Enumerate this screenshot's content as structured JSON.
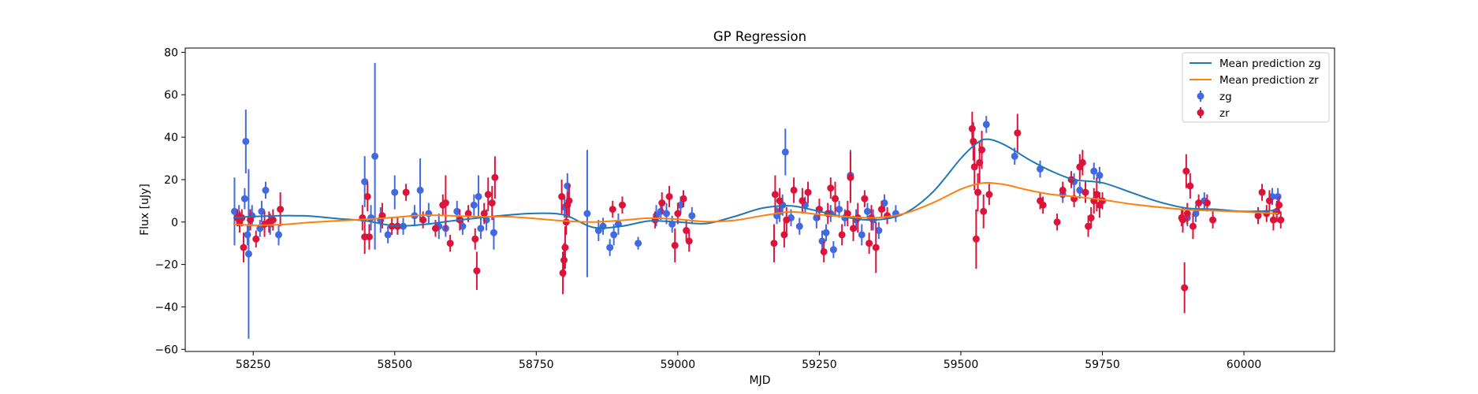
{
  "chart_data": {
    "type": "scatter",
    "title": "GP Regression",
    "xlabel": "MJD",
    "ylabel": "Flux [uJy]",
    "xlim": [
      58130,
      60160
    ],
    "ylim": [
      -61,
      82
    ],
    "xticks": [
      58250,
      58500,
      58750,
      59000,
      59250,
      59500,
      59750,
      60000
    ],
    "yticks": [
      -60,
      -40,
      -20,
      0,
      20,
      40,
      60,
      80
    ],
    "grid": false,
    "legend_position": "top-right",
    "series": [
      {
        "name": "Mean prediction zg",
        "kind": "line",
        "color": "#1f77b4",
        "x": [
          58215,
          58250,
          58300,
          58350,
          58400,
          58450,
          58500,
          58550,
          58600,
          58650,
          58700,
          58750,
          58800,
          58850,
          58900,
          58950,
          59000,
          59050,
          59100,
          59150,
          59200,
          59250,
          59300,
          59350,
          59400,
          59450,
          59500,
          59530,
          59550,
          59580,
          59620,
          59660,
          59700,
          59750,
          59800,
          59850,
          59900,
          59950,
          60000,
          60060
        ],
        "y": [
          2.0,
          2.6,
          3.0,
          2.8,
          1.6,
          0.5,
          -1.8,
          -1.2,
          0.5,
          2.0,
          3.3,
          4.1,
          3.3,
          -2.5,
          -2.0,
          0.5,
          0.0,
          -0.7,
          2.6,
          6.6,
          7.6,
          5.0,
          2.1,
          1.0,
          4.0,
          14.0,
          30.0,
          37.5,
          39.0,
          36.0,
          29.5,
          24.0,
          20.0,
          18.5,
          14.0,
          9.5,
          6.5,
          6.0,
          5.0,
          5.5
        ]
      },
      {
        "name": "Mean prediction zr",
        "kind": "line",
        "color": "#ff7f0e",
        "x": [
          58215,
          58250,
          58300,
          58350,
          58400,
          58450,
          58500,
          58550,
          58600,
          58650,
          58700,
          58750,
          58800,
          58850,
          58900,
          58950,
          59000,
          59050,
          59100,
          59150,
          59200,
          59250,
          59300,
          59350,
          59400,
          59450,
          59500,
          59530,
          59550,
          59580,
          59620,
          59660,
          59700,
          59750,
          59800,
          59850,
          59900,
          59950,
          60000,
          60060
        ],
        "y": [
          -1.0,
          -1.5,
          -1.2,
          -0.2,
          0.6,
          1.3,
          2.2,
          3.2,
          3.0,
          2.5,
          2.5,
          1.6,
          0.5,
          0.0,
          0.8,
          1.8,
          1.3,
          0.2,
          0.8,
          3.0,
          4.8,
          3.5,
          2.5,
          2.0,
          4.0,
          9.0,
          15.5,
          18.0,
          18.5,
          17.5,
          15.0,
          13.0,
          12.0,
          10.5,
          8.5,
          7.0,
          5.8,
          5.3,
          4.8,
          4.0
        ]
      },
      {
        "name": "zg",
        "kind": "errorbar",
        "color": "#4169e1",
        "points": [
          [
            58217,
            5,
            16
          ],
          [
            58225,
            3,
            5
          ],
          [
            58235,
            11,
            5
          ],
          [
            58237,
            38,
            15
          ],
          [
            58240,
            -6,
            5
          ],
          [
            58242,
            -15,
            40
          ],
          [
            58248,
            3,
            5
          ],
          [
            58262,
            -3,
            4
          ],
          [
            58265,
            5,
            5
          ],
          [
            58272,
            15,
            4
          ],
          [
            58280,
            -1,
            5
          ],
          [
            58295,
            -6,
            5
          ],
          [
            58447,
            19,
            12
          ],
          [
            58458,
            2,
            6
          ],
          [
            58465,
            31,
            44
          ],
          [
            58475,
            1,
            6
          ],
          [
            58488,
            -6,
            4
          ],
          [
            58500,
            14,
            8
          ],
          [
            58515,
            -2,
            4
          ],
          [
            58535,
            3,
            5
          ],
          [
            58545,
            15,
            15
          ],
          [
            58560,
            4,
            5
          ],
          [
            58578,
            -2,
            6
          ],
          [
            58590,
            -3,
            4
          ],
          [
            58610,
            5,
            5
          ],
          [
            58620,
            -2,
            4
          ],
          [
            58640,
            8,
            5
          ],
          [
            58648,
            12,
            10
          ],
          [
            58652,
            -3,
            5
          ],
          [
            58662,
            1,
            5
          ],
          [
            58675,
            -5,
            8
          ],
          [
            58800,
            7,
            5
          ],
          [
            58805,
            17,
            6
          ],
          [
            58840,
            4,
            30
          ],
          [
            58860,
            -4,
            5
          ],
          [
            58868,
            -2,
            4
          ],
          [
            58880,
            -12,
            4
          ],
          [
            58887,
            -6,
            5
          ],
          [
            58895,
            -1,
            5
          ],
          [
            58930,
            -10,
            3
          ],
          [
            58962,
            3,
            5
          ],
          [
            58970,
            5,
            4
          ],
          [
            58980,
            4,
            5
          ],
          [
            58990,
            -1,
            4
          ],
          [
            59005,
            8,
            4
          ],
          [
            59025,
            3,
            4
          ],
          [
            59175,
            3,
            4
          ],
          [
            59180,
            5,
            5
          ],
          [
            59185,
            8,
            5
          ],
          [
            59190,
            33,
            11
          ],
          [
            59200,
            2,
            4
          ],
          [
            59215,
            -2,
            4
          ],
          [
            59225,
            8,
            4
          ],
          [
            59245,
            2,
            5
          ],
          [
            59255,
            -9,
            5
          ],
          [
            59262,
            -5,
            4
          ],
          [
            59270,
            4,
            4
          ],
          [
            59275,
            -13,
            4
          ],
          [
            59285,
            6,
            4
          ],
          [
            59295,
            2,
            4
          ],
          [
            59305,
            22,
            12
          ],
          [
            59315,
            1,
            5
          ],
          [
            59325,
            -6,
            5
          ],
          [
            59335,
            5,
            4
          ],
          [
            59345,
            1,
            5
          ],
          [
            59355,
            -4,
            4
          ],
          [
            59365,
            9,
            4
          ],
          [
            59385,
            4,
            4
          ],
          [
            59545,
            46,
            4
          ],
          [
            59595,
            31,
            4
          ],
          [
            59640,
            25,
            4
          ],
          [
            59680,
            13,
            4
          ],
          [
            59700,
            19,
            4
          ],
          [
            59710,
            15,
            4
          ],
          [
            59735,
            24,
            4
          ],
          [
            59745,
            22,
            4
          ],
          [
            59900,
            2,
            4
          ],
          [
            59915,
            4,
            4
          ],
          [
            59930,
            10,
            4
          ],
          [
            60050,
            12,
            4
          ],
          [
            60060,
            12,
            4
          ]
        ]
      },
      {
        "name": "zr",
        "kind": "errorbar",
        "color": "#dc143c",
        "points": [
          [
            58222,
            2,
            4
          ],
          [
            58226,
            0,
            5
          ],
          [
            58230,
            2,
            4
          ],
          [
            58233,
            -12,
            7
          ],
          [
            58245,
            1,
            5
          ],
          [
            58255,
            -8,
            4
          ],
          [
            58270,
            -1,
            6
          ],
          [
            58278,
            0,
            5
          ],
          [
            58285,
            1,
            5
          ],
          [
            58298,
            6,
            8
          ],
          [
            58443,
            2,
            6
          ],
          [
            58447,
            -7,
            8
          ],
          [
            58452,
            12,
            7
          ],
          [
            58455,
            -7,
            6
          ],
          [
            58478,
            3,
            6
          ],
          [
            58495,
            -2,
            4
          ],
          [
            58505,
            -2,
            4
          ],
          [
            58520,
            14,
            4
          ],
          [
            58550,
            1,
            4
          ],
          [
            58572,
            -3,
            4
          ],
          [
            58585,
            8,
            5
          ],
          [
            58590,
            9,
            13
          ],
          [
            58598,
            -10,
            4
          ],
          [
            58615,
            1,
            5
          ],
          [
            58630,
            4,
            4
          ],
          [
            58642,
            -8,
            5
          ],
          [
            58645,
            -23,
            9
          ],
          [
            58658,
            4,
            5
          ],
          [
            58665,
            13,
            8
          ],
          [
            58672,
            9,
            8
          ],
          [
            58677,
            21,
            10
          ],
          [
            58795,
            12,
            8
          ],
          [
            58797,
            -24,
            10
          ],
          [
            58799,
            -18,
            8
          ],
          [
            58801,
            -12,
            10
          ],
          [
            58803,
            0,
            6
          ],
          [
            58805,
            8,
            6
          ],
          [
            58808,
            10,
            8
          ],
          [
            58885,
            6,
            4
          ],
          [
            58902,
            8,
            4
          ],
          [
            58960,
            1,
            4
          ],
          [
            58972,
            9,
            5
          ],
          [
            58985,
            12,
            5
          ],
          [
            58995,
            -11,
            8
          ],
          [
            59000,
            4,
            5
          ],
          [
            59010,
            11,
            4
          ],
          [
            59015,
            -4,
            5
          ],
          [
            59020,
            -9,
            5
          ],
          [
            59170,
            -10,
            9
          ],
          [
            59172,
            13,
            9
          ],
          [
            59180,
            10,
            6
          ],
          [
            59188,
            -6,
            6
          ],
          [
            59192,
            1,
            6
          ],
          [
            59205,
            15,
            6
          ],
          [
            59220,
            10,
            6
          ],
          [
            59230,
            14,
            5
          ],
          [
            59250,
            6,
            5
          ],
          [
            59258,
            -14,
            5
          ],
          [
            59265,
            4,
            5
          ],
          [
            59270,
            16,
            5
          ],
          [
            59278,
            11,
            8
          ],
          [
            59290,
            -6,
            5
          ],
          [
            59300,
            4,
            6
          ],
          [
            59305,
            21,
            12
          ],
          [
            59310,
            -3,
            6
          ],
          [
            59318,
            2,
            7
          ],
          [
            59330,
            11,
            4
          ],
          [
            59338,
            -10,
            5
          ],
          [
            59342,
            2,
            6
          ],
          [
            59350,
            -12,
            12
          ],
          [
            59360,
            6,
            4
          ],
          [
            59370,
            3,
            4
          ],
          [
            59520,
            44,
            8
          ],
          [
            59522,
            38,
            9
          ],
          [
            59524,
            26,
            11
          ],
          [
            59527,
            -8,
            14
          ],
          [
            59530,
            14,
            9
          ],
          [
            59533,
            28,
            10
          ],
          [
            59537,
            34,
            9
          ],
          [
            59540,
            5,
            8
          ],
          [
            59550,
            13,
            5
          ],
          [
            59600,
            42,
            9
          ],
          [
            59640,
            10,
            4
          ],
          [
            59645,
            8,
            4
          ],
          [
            59670,
            0,
            4
          ],
          [
            59680,
            15,
            4
          ],
          [
            59695,
            20,
            4
          ],
          [
            59700,
            11,
            4
          ],
          [
            59710,
            26,
            6
          ],
          [
            59715,
            28,
            6
          ],
          [
            59720,
            14,
            5
          ],
          [
            59725,
            -2,
            5
          ],
          [
            59730,
            2,
            5
          ],
          [
            59735,
            10,
            6
          ],
          [
            59740,
            13,
            8
          ],
          [
            59745,
            8,
            6
          ],
          [
            59750,
            10,
            4
          ],
          [
            59890,
            2,
            4
          ],
          [
            59892,
            1,
            6
          ],
          [
            59895,
            -31,
            12
          ],
          [
            59898,
            24,
            8
          ],
          [
            59900,
            4,
            5
          ],
          [
            59905,
            17,
            6
          ],
          [
            59910,
            -2,
            6
          ],
          [
            59920,
            9,
            4
          ],
          [
            59935,
            9,
            4
          ],
          [
            59945,
            1,
            4
          ],
          [
            60025,
            3,
            4
          ],
          [
            60032,
            14,
            4
          ],
          [
            60040,
            4,
            4
          ],
          [
            60045,
            10,
            5
          ],
          [
            60052,
            1,
            5
          ],
          [
            60058,
            5,
            5
          ],
          [
            60062,
            8,
            4
          ],
          [
            60065,
            1,
            4
          ]
        ]
      }
    ]
  }
}
